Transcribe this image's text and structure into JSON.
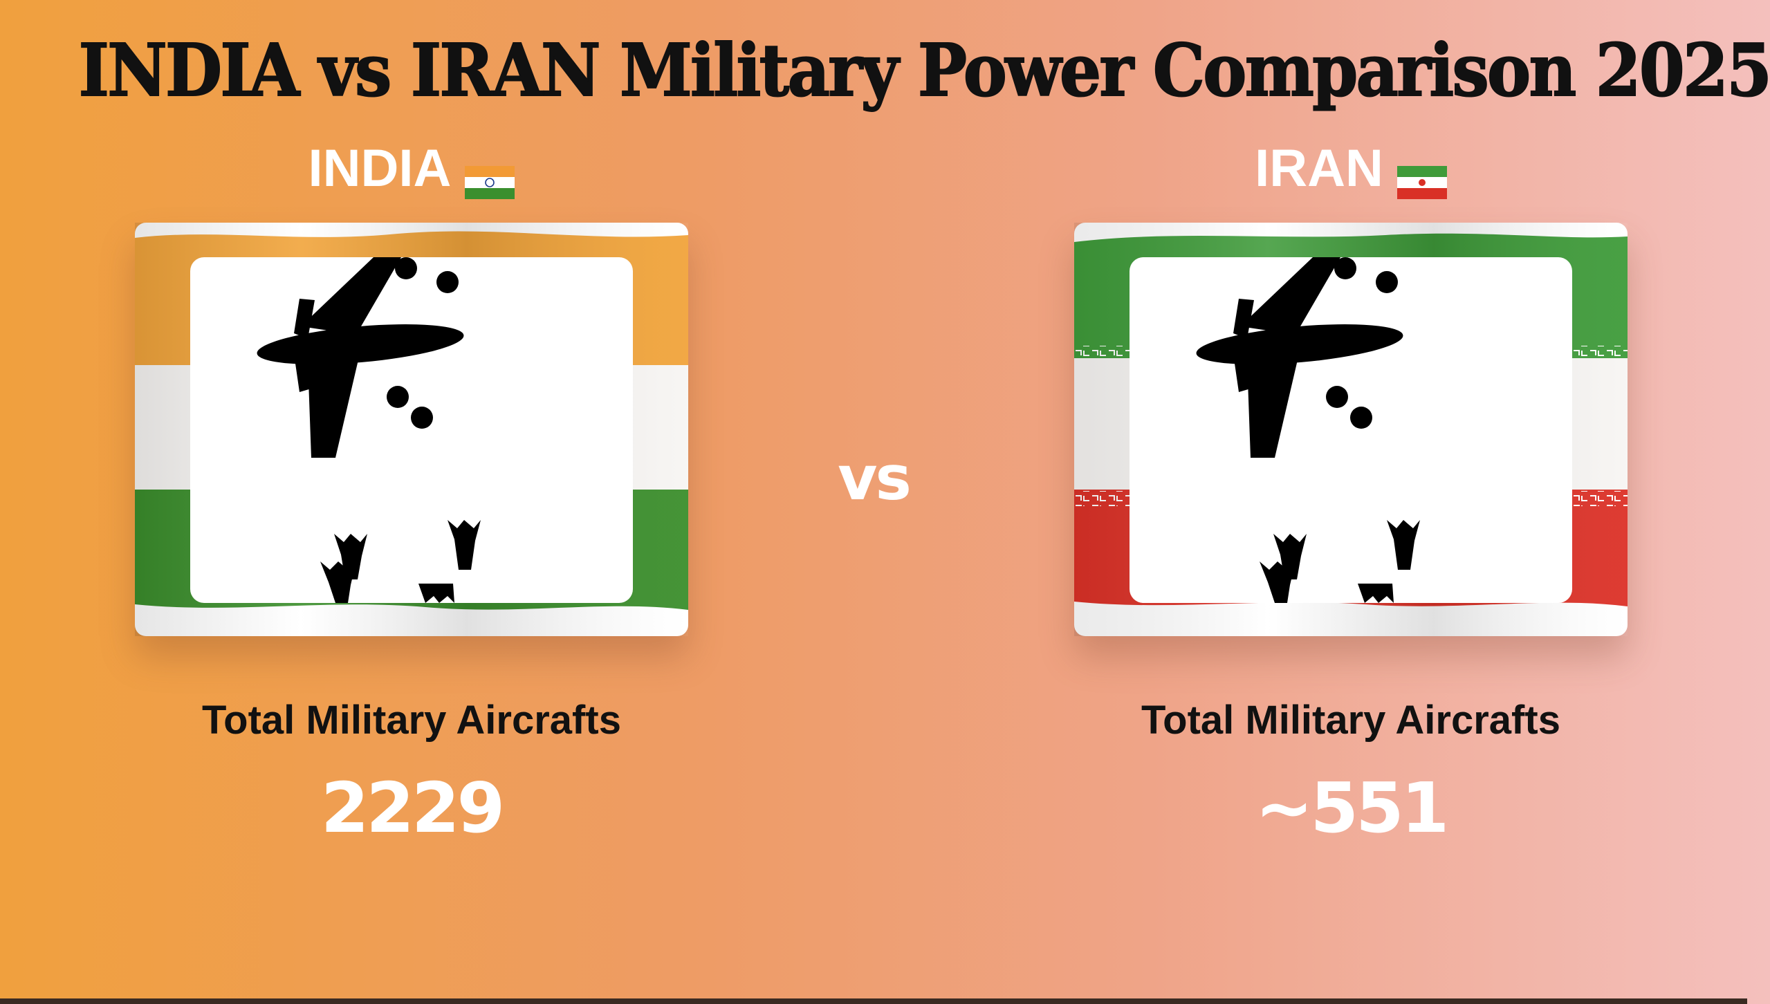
{
  "title": "INDIA vs IRAN Military Power Comparison 2025",
  "vs_label": "vs",
  "colors": {
    "india_saffron": "#f0a43a",
    "india_green": "#3a8f2e",
    "iran_green": "#3f9b3a",
    "iran_red": "#d93026",
    "value_text": "#ffffff"
  },
  "countries": [
    {
      "name": "INDIA",
      "flag_icon": "india-flag-icon",
      "metric_icon": "bomber-airplane-icon",
      "stat_label": "Total Military Aircrafts",
      "stat_value": "2229"
    },
    {
      "name": "IRAN",
      "flag_icon": "iran-flag-icon",
      "metric_icon": "bomber-airplane-icon",
      "stat_label": "Total Military Aircrafts",
      "stat_value": "~551"
    }
  ]
}
